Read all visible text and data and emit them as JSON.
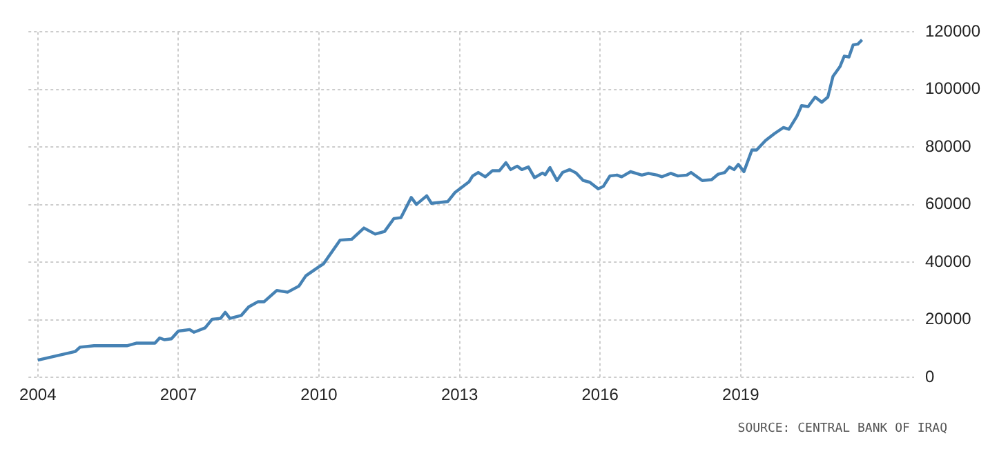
{
  "chart_data": {
    "type": "line",
    "x": [
      2004.0,
      2004.8,
      2004.9,
      2005.2,
      2005.9,
      2006.1,
      2006.5,
      2006.6,
      2006.7,
      2006.85,
      2007.0,
      2007.24,
      2007.33,
      2007.57,
      2007.72,
      2007.9,
      2008.0,
      2008.1,
      2008.34,
      2008.5,
      2008.7,
      2008.83,
      2009.1,
      2009.33,
      2009.57,
      2009.72,
      2009.96,
      2010.1,
      2010.45,
      2010.7,
      2010.96,
      2011.2,
      2011.4,
      2011.6,
      2011.75,
      2011.97,
      2012.08,
      2012.3,
      2012.4,
      2012.75,
      2012.9,
      2013.2,
      2013.28,
      2013.4,
      2013.55,
      2013.7,
      2013.85,
      2013.99,
      2014.09,
      2014.23,
      2014.33,
      2014.47,
      2014.6,
      2014.77,
      2014.83,
      2014.93,
      2015.08,
      2015.2,
      2015.35,
      2015.49,
      2015.64,
      2015.78,
      2015.96,
      2016.07,
      2016.21,
      2016.36,
      2016.46,
      2016.65,
      2016.89,
      2017.03,
      2017.22,
      2017.32,
      2017.51,
      2017.66,
      2017.85,
      2017.94,
      2018.18,
      2018.38,
      2018.52,
      2018.66,
      2018.76,
      2018.86,
      2018.95,
      2019.07,
      2019.14,
      2019.24,
      2019.34,
      2019.53,
      2019.72,
      2019.91,
      2020.03,
      2020.2,
      2020.3,
      2020.44,
      2020.59,
      2020.73,
      2020.86,
      2020.97,
      2021.12,
      2021.21,
      2021.31,
      2021.4,
      2021.5,
      2021.59
    ],
    "series": [
      {
        "color": "#4682b4",
        "values": [
          6000,
          9000,
          10500,
          11000,
          11000,
          11900,
          11900,
          13700,
          13100,
          13400,
          16100,
          16600,
          15700,
          17200,
          20200,
          20500,
          22600,
          20500,
          21500,
          24500,
          26300,
          26300,
          30200,
          29600,
          31700,
          35300,
          38000,
          39500,
          47700,
          48000,
          51900,
          49800,
          50700,
          55200,
          55500,
          62500,
          60100,
          63100,
          60500,
          61100,
          64200,
          67900,
          70000,
          71200,
          69700,
          71800,
          71800,
          74600,
          72200,
          73400,
          72200,
          73100,
          69400,
          71000,
          70400,
          72900,
          68400,
          71200,
          72200,
          71000,
          68400,
          67800,
          65500,
          66400,
          70000,
          70300,
          69700,
          71500,
          70300,
          70900,
          70300,
          69700,
          70900,
          70000,
          70300,
          71200,
          68400,
          68700,
          70600,
          71200,
          73100,
          72200,
          74000,
          71500,
          74600,
          79000,
          79000,
          82300,
          84700,
          86800,
          86200,
          90700,
          94400,
          94100,
          97400,
          95600,
          97400,
          104600,
          108000,
          111600,
          111300,
          115500,
          115800,
          117300
        ]
      }
    ],
    "xlim": [
      2003.8,
      2022.7
    ],
    "xticks": [
      2004,
      2007,
      2010,
      2013,
      2016,
      2019
    ],
    "ylim": [
      0,
      120000
    ],
    "yticks": [
      0,
      20000,
      40000,
      60000,
      80000,
      100000,
      120000
    ],
    "grid": true,
    "legend": false,
    "marker": "none",
    "line_style": "solid",
    "annotations": [
      "SOURCE: CENTRAL BANK OF IRAQ"
    ]
  }
}
